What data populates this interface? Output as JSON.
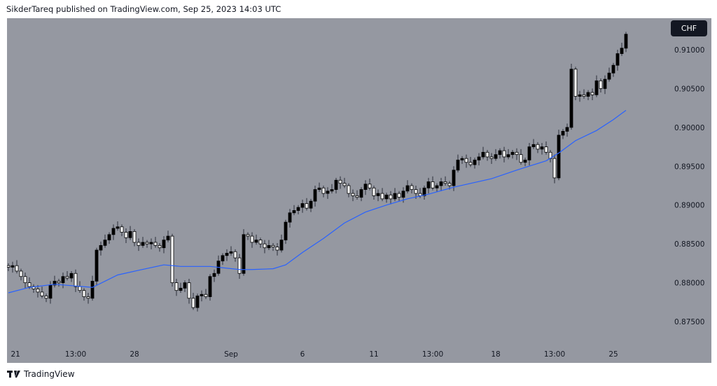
{
  "header": {
    "attribution": "SikderTareq published on TradingView.com, Sep 25, 2023 14:03 UTC"
  },
  "price_axis": {
    "currency": "CHF"
  },
  "footer": {
    "brand": "TradingView",
    "logo_text": "TV"
  },
  "colors": {
    "background": "#9598a1",
    "bull_body": "#000000",
    "bear_body": "#ffffff",
    "ma_line": "#2962ff",
    "text": "#131722"
  },
  "chart_data": {
    "type": "candlestick",
    "title": "",
    "ylim": [
      0.8715,
      0.9135
    ],
    "y_ticks": [
      0.91,
      0.905,
      0.9,
      0.895,
      0.89,
      0.885,
      0.88,
      0.875
    ],
    "y_tick_labels": [
      "0.91000",
      "0.90500",
      "0.90000",
      "0.89500",
      "0.89000",
      "0.88500",
      "0.88000",
      "0.87500"
    ],
    "x_ticks": [
      {
        "bar": 1.7,
        "label": "21"
      },
      {
        "bar": 16,
        "label": "13:00"
      },
      {
        "bar": 30,
        "label": "28"
      },
      {
        "bar": 53,
        "label": "Sep"
      },
      {
        "bar": 70,
        "label": "6"
      },
      {
        "bar": 87,
        "label": "11"
      },
      {
        "bar": 101,
        "label": "13:00"
      },
      {
        "bar": 116,
        "label": "18"
      },
      {
        "bar": 130,
        "label": "13:00"
      },
      {
        "bar": 144,
        "label": "25"
      }
    ],
    "first_open": 0.8822,
    "closes": [
      0.882,
      0.8822,
      0.8815,
      0.8808,
      0.88,
      0.8795,
      0.8792,
      0.8788,
      0.8783,
      0.878,
      0.8797,
      0.8802,
      0.88,
      0.8808,
      0.8806,
      0.8812,
      0.8795,
      0.879,
      0.8782,
      0.878,
      0.8802,
      0.8842,
      0.8848,
      0.8855,
      0.8862,
      0.887,
      0.8872,
      0.8865,
      0.8858,
      0.8866,
      0.8852,
      0.8848,
      0.8852,
      0.885,
      0.8852,
      0.8848,
      0.8845,
      0.8855,
      0.886,
      0.88,
      0.879,
      0.8793,
      0.88,
      0.878,
      0.8768,
      0.8783,
      0.8785,
      0.8782,
      0.8808,
      0.8812,
      0.8828,
      0.8835,
      0.8838,
      0.884,
      0.8832,
      0.8812,
      0.8862,
      0.886,
      0.8852,
      0.8855,
      0.885,
      0.8845,
      0.8848,
      0.8846,
      0.8842,
      0.8855,
      0.8878,
      0.889,
      0.8893,
      0.8897,
      0.8902,
      0.8896,
      0.8905,
      0.892,
      0.8922,
      0.8915,
      0.8918,
      0.892,
      0.8932,
      0.8928,
      0.8925,
      0.8915,
      0.8912,
      0.891,
      0.892,
      0.8927,
      0.8922,
      0.8912,
      0.8915,
      0.8908,
      0.8913,
      0.8908,
      0.8915,
      0.891,
      0.8918,
      0.8925,
      0.892,
      0.8915,
      0.8912,
      0.8922,
      0.893,
      0.8922,
      0.8925,
      0.893,
      0.8928,
      0.8925,
      0.8945,
      0.8958,
      0.896,
      0.8955,
      0.8952,
      0.8958,
      0.8962,
      0.8968,
      0.8962,
      0.896,
      0.8965,
      0.897,
      0.8962,
      0.8965,
      0.8968,
      0.8965,
      0.8955,
      0.8958,
      0.8975,
      0.8978,
      0.8972,
      0.8975,
      0.8968,
      0.896,
      0.8935,
      0.899,
      0.8995,
      0.9,
      0.9075,
      0.904,
      0.9042,
      0.904,
      0.9045,
      0.9042,
      0.906,
      0.905,
      0.9062,
      0.907,
      0.908,
      0.9095,
      0.9102,
      0.912
    ],
    "moving_average": [
      {
        "bar": 0,
        "value": 0.8787
      },
      {
        "bar": 5,
        "value": 0.8794
      },
      {
        "bar": 11,
        "value": 0.8798
      },
      {
        "bar": 20,
        "value": 0.8794
      },
      {
        "bar": 26,
        "value": 0.881
      },
      {
        "bar": 31,
        "value": 0.8816
      },
      {
        "bar": 37,
        "value": 0.8823
      },
      {
        "bar": 41,
        "value": 0.8821
      },
      {
        "bar": 48,
        "value": 0.8821
      },
      {
        "bar": 55,
        "value": 0.8817
      },
      {
        "bar": 58,
        "value": 0.8817
      },
      {
        "bar": 63,
        "value": 0.8818
      },
      {
        "bar": 66,
        "value": 0.8823
      },
      {
        "bar": 70,
        "value": 0.8839
      },
      {
        "bar": 75,
        "value": 0.8857
      },
      {
        "bar": 80,
        "value": 0.8877
      },
      {
        "bar": 85,
        "value": 0.8891
      },
      {
        "bar": 90,
        "value": 0.89
      },
      {
        "bar": 95,
        "value": 0.8908
      },
      {
        "bar": 100,
        "value": 0.8914
      },
      {
        "bar": 106,
        "value": 0.8923
      },
      {
        "bar": 115,
        "value": 0.8934
      },
      {
        "bar": 121,
        "value": 0.8945
      },
      {
        "bar": 128,
        "value": 0.8957
      },
      {
        "bar": 131,
        "value": 0.8967
      },
      {
        "bar": 135,
        "value": 0.8983
      },
      {
        "bar": 140,
        "value": 0.8996
      },
      {
        "bar": 144,
        "value": 0.901
      },
      {
        "bar": 147,
        "value": 0.9022
      }
    ]
  }
}
